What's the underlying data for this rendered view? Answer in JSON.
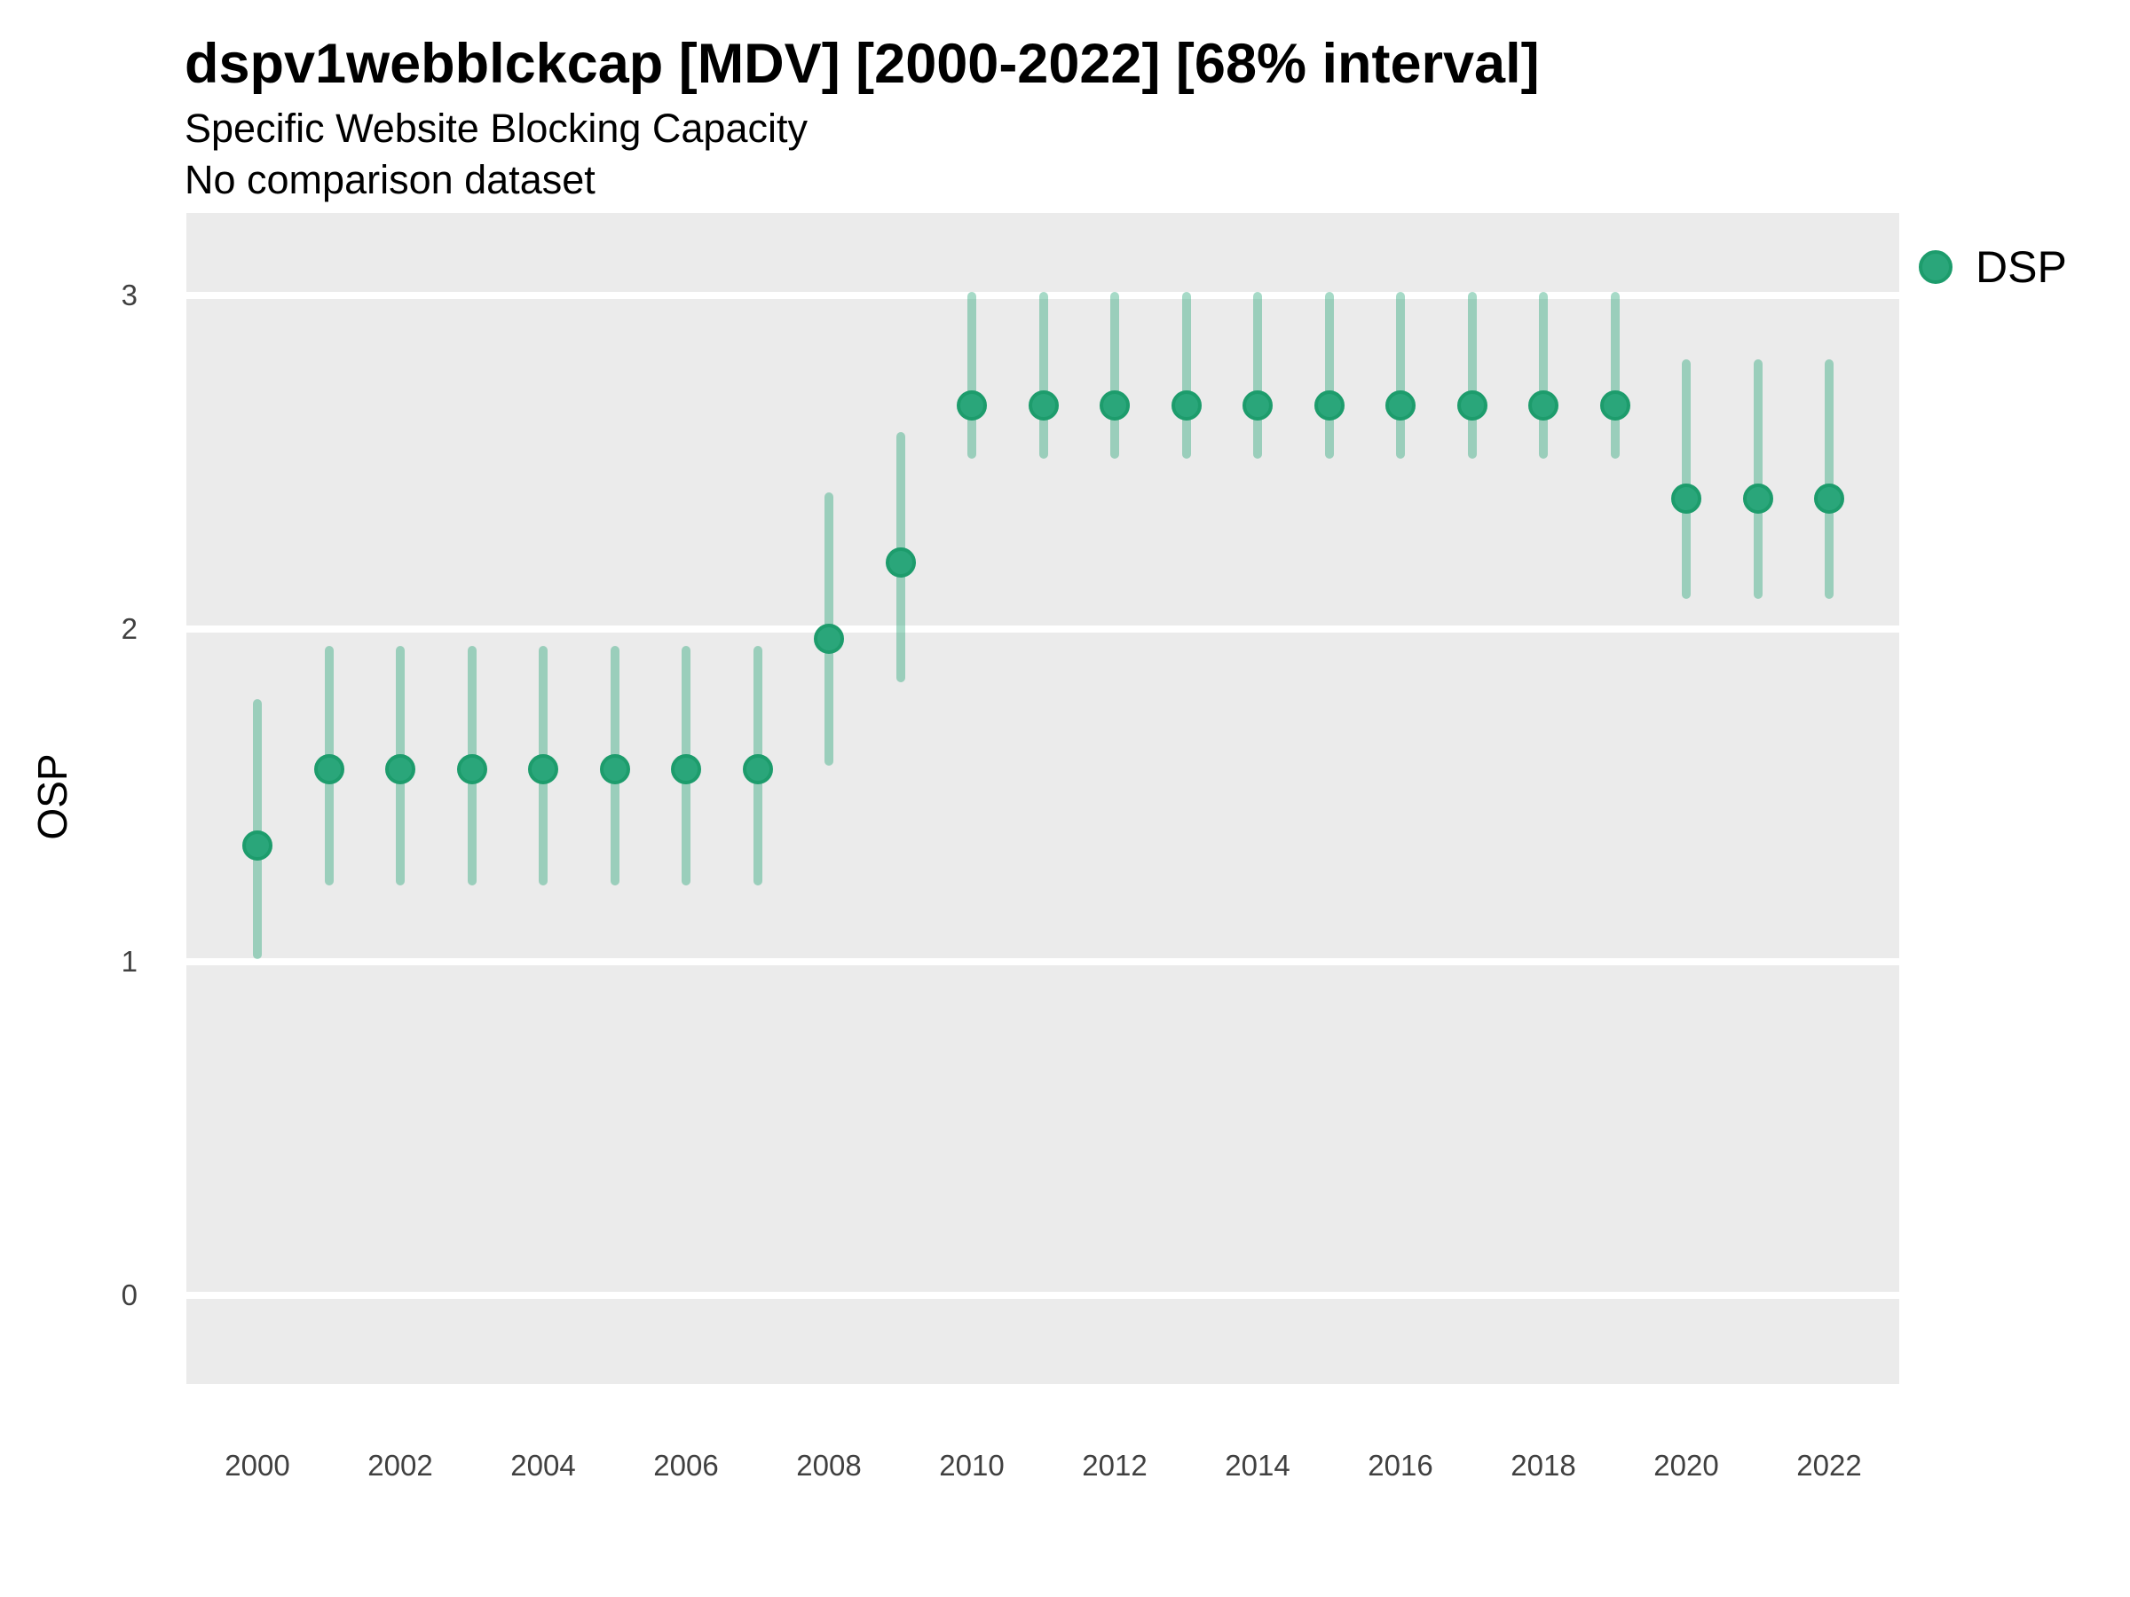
{
  "header": {
    "title": "dspv1webblckcap [MDV] [2000-2022] [68% interval]",
    "subtitle": "Specific Website Blocking Capacity",
    "comparison_note": "No comparison dataset"
  },
  "legend": {
    "position": "right",
    "items": [
      {
        "label": "DSP",
        "color": "#2aa67a"
      }
    ]
  },
  "colors": {
    "point": "#2aa67a",
    "point_edge": "#1d9c6c",
    "interval_bar": "rgba(42,166,122,0.42)",
    "panel_background": "#ebebeb",
    "gridline": "#ffffff",
    "axis_text": "#404040",
    "title_text": "#000000"
  },
  "chart_data": {
    "type": "scatter",
    "subtype": "pointrange",
    "title": "dspv1webblckcap [MDV] [2000-2022] [68% interval]",
    "subtitle": "Specific Website Blocking Capacity",
    "note": "No comparison dataset",
    "xlabel": "",
    "ylabel": "OSP",
    "interval": "68%",
    "grid": "horizontal-major-only",
    "legend_position": "right",
    "x": [
      2000,
      2001,
      2002,
      2003,
      2004,
      2005,
      2006,
      2007,
      2008,
      2009,
      2010,
      2011,
      2012,
      2013,
      2014,
      2015,
      2016,
      2017,
      2018,
      2019,
      2020,
      2021,
      2022
    ],
    "x_tick_labels": [
      "2000",
      "2002",
      "2004",
      "2006",
      "2008",
      "2010",
      "2012",
      "2014",
      "2016",
      "2018",
      "2020",
      "2022"
    ],
    "y_ticks": [
      0,
      1,
      2,
      3
    ],
    "ylim": [
      -0.26,
      3.25
    ],
    "series": [
      {
        "name": "DSP",
        "estimates": [
          1.35,
          1.58,
          1.58,
          1.58,
          1.58,
          1.58,
          1.58,
          1.58,
          1.97,
          2.2,
          2.67,
          2.67,
          2.67,
          2.67,
          2.67,
          2.67,
          2.67,
          2.67,
          2.67,
          2.67,
          2.39,
          2.39,
          2.39
        ],
        "lower_68": [
          1.01,
          1.23,
          1.23,
          1.23,
          1.23,
          1.23,
          1.23,
          1.23,
          1.59,
          1.84,
          2.51,
          2.51,
          2.51,
          2.51,
          2.51,
          2.51,
          2.51,
          2.51,
          2.51,
          2.51,
          2.09,
          2.09,
          2.09
        ],
        "upper_68": [
          1.79,
          1.95,
          1.95,
          1.95,
          1.95,
          1.95,
          1.95,
          1.95,
          2.41,
          2.59,
          3.01,
          3.01,
          3.01,
          3.01,
          3.01,
          3.01,
          3.01,
          3.01,
          3.01,
          3.01,
          2.81,
          2.81,
          2.81
        ]
      }
    ]
  }
}
